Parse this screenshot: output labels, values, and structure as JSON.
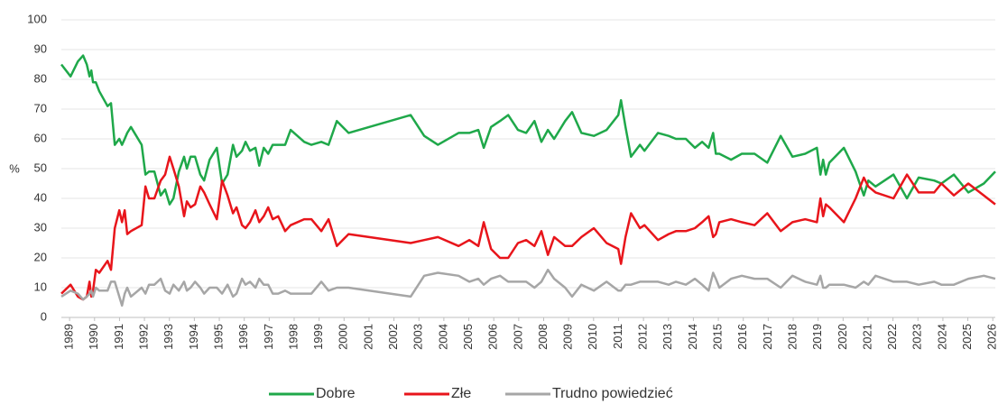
{
  "chart_data": {
    "type": "line",
    "y_label": "%",
    "xlim": [
      1988.67,
      2026.1
    ],
    "xticks": [
      1989,
      1990,
      1991,
      1992,
      1993,
      1994,
      1995,
      1996,
      1997,
      1998,
      1999,
      2000,
      2001,
      2002,
      2003,
      2004,
      2005,
      2006,
      2007,
      2008,
      2009,
      2010,
      2011,
      2012,
      2013,
      2014,
      2015,
      2016,
      2017,
      2018,
      2019,
      2020,
      2021,
      2022,
      2023,
      2024,
      2025,
      2026
    ],
    "ylim": [
      0,
      100
    ],
    "yticks": [
      0,
      10,
      20,
      30,
      40,
      50,
      60,
      70,
      80,
      90,
      100
    ],
    "grid": true,
    "legend": "bottom",
    "x": [
      1988.67,
      1989.04,
      1989.33,
      1989.54,
      1989.69,
      1989.8,
      1989.87,
      1989.94,
      1990.05,
      1990.19,
      1990.52,
      1990.66,
      1990.81,
      1990.99,
      1991.1,
      1991.21,
      1991.31,
      1991.46,
      1991.89,
      1992.04,
      1992.18,
      1992.4,
      1992.65,
      1992.83,
      1993.01,
      1993.16,
      1993.38,
      1993.59,
      1993.7,
      1993.85,
      1994.03,
      1994.24,
      1994.39,
      1994.61,
      1994.9,
      1995.11,
      1995.33,
      1995.55,
      1995.69,
      1995.91,
      1996.05,
      1996.23,
      1996.45,
      1996.6,
      1996.78,
      1996.96,
      1997.14,
      1997.36,
      1997.64,
      1997.86,
      1998.4,
      1998.69,
      1999.09,
      1999.38,
      1999.71,
      2000.18,
      2002.67,
      2003.21,
      2003.76,
      2004.59,
      2005.02,
      2005.38,
      2005.6,
      2005.89,
      2006.25,
      2006.58,
      2006.97,
      2007.3,
      2007.63,
      2007.91,
      2008.17,
      2008.42,
      2008.86,
      2009.14,
      2009.51,
      2010.01,
      2010.52,
      2010.99,
      2011.1,
      2011.28,
      2011.5,
      2011.86,
      2012.04,
      2012.58,
      2013.01,
      2013.3,
      2013.7,
      2014.06,
      2014.35,
      2014.61,
      2014.79,
      2014.9,
      2015.04,
      2015.51,
      2015.94,
      2016.45,
      2016.96,
      2017.5,
      2017.97,
      2018.48,
      2018.95,
      2019.09,
      2019.2,
      2019.31,
      2019.45,
      2020.03,
      2020.5,
      2020.83,
      2021.01,
      2021.3,
      2022.02,
      2022.56,
      2023.03,
      2023.65,
      2023.94,
      2024.44,
      2025.02,
      2025.64,
      2026.1
    ],
    "series": [
      {
        "name": "Dobre",
        "color": "#1fa84a",
        "values": [
          85,
          81,
          86,
          88,
          85,
          81,
          83,
          79,
          79,
          76,
          71,
          72,
          58,
          60,
          58,
          60,
          62,
          64,
          58,
          48,
          49,
          49,
          41,
          43,
          38,
          40,
          49,
          54,
          50,
          54,
          54,
          48,
          46,
          53,
          57,
          45,
          48,
          58,
          54,
          56,
          59,
          56,
          57,
          51,
          57,
          55,
          58,
          58,
          58,
          63,
          59,
          58,
          59,
          58,
          66,
          62,
          68,
          61,
          58,
          62,
          62,
          63,
          57,
          64,
          66,
          68,
          63,
          62,
          66,
          59,
          63,
          60,
          66,
          69,
          62,
          61,
          63,
          68,
          73,
          64,
          54,
          58,
          56,
          62,
          61,
          60,
          60,
          57,
          59,
          57,
          62,
          55,
          55,
          53,
          55,
          55,
          52,
          61,
          54,
          55,
          57,
          48,
          53,
          48,
          52,
          57,
          49,
          41,
          46,
          44,
          48,
          40,
          47,
          46,
          45,
          48,
          42,
          45,
          49
        ]
      },
      {
        "name": "Złe",
        "color": "#e8151b",
        "values": [
          8,
          11,
          7,
          6,
          7,
          12,
          7,
          9,
          16,
          15,
          19,
          16,
          30,
          36,
          32,
          36,
          28,
          29,
          31,
          44,
          40,
          40,
          46,
          48,
          54,
          50,
          44,
          34,
          39,
          37,
          38,
          44,
          42,
          38,
          33,
          46,
          41,
          35,
          37,
          31,
          30,
          32,
          36,
          32,
          34,
          37,
          33,
          34,
          29,
          31,
          33,
          33,
          29,
          33,
          24,
          28,
          25,
          26,
          27,
          24,
          26,
          24,
          32,
          23,
          20,
          20,
          25,
          26,
          24,
          29,
          21,
          27,
          24,
          24,
          27,
          30,
          25,
          23,
          18,
          27,
          35,
          30,
          31,
          26,
          28,
          29,
          29,
          30,
          32,
          34,
          27,
          28,
          32,
          33,
          32,
          31,
          35,
          29,
          32,
          33,
          32,
          40,
          34,
          38,
          37,
          32,
          40,
          47,
          44,
          42,
          40,
          48,
          42,
          42,
          45,
          41,
          45,
          41,
          38
        ]
      },
      {
        "name": "Trudno powiedzieć",
        "color": "#a6a6a6",
        "values": [
          7,
          9,
          8,
          6,
          7,
          8,
          9,
          7,
          10,
          9,
          9,
          12,
          12,
          7,
          4,
          8,
          10,
          7,
          10,
          8,
          11,
          11,
          13,
          9,
          8,
          11,
          9,
          12,
          9,
          10,
          12,
          10,
          8,
          10,
          10,
          8,
          11,
          7,
          8,
          13,
          11,
          12,
          10,
          13,
          11,
          11,
          8,
          8,
          9,
          8,
          8,
          8,
          12,
          9,
          10,
          10,
          7,
          14,
          15,
          14,
          12,
          13,
          11,
          13,
          14,
          12,
          12,
          12,
          10,
          12,
          16,
          13,
          10,
          7,
          11,
          9,
          12,
          9,
          9,
          11,
          11,
          12,
          12,
          12,
          11,
          12,
          11,
          13,
          11,
          9,
          15,
          13,
          10,
          13,
          14,
          13,
          13,
          10,
          14,
          12,
          11,
          14,
          10,
          10,
          11,
          11,
          10,
          12,
          11,
          14,
          12,
          12,
          11,
          12,
          11,
          11,
          13,
          14,
          13
        ]
      }
    ]
  }
}
